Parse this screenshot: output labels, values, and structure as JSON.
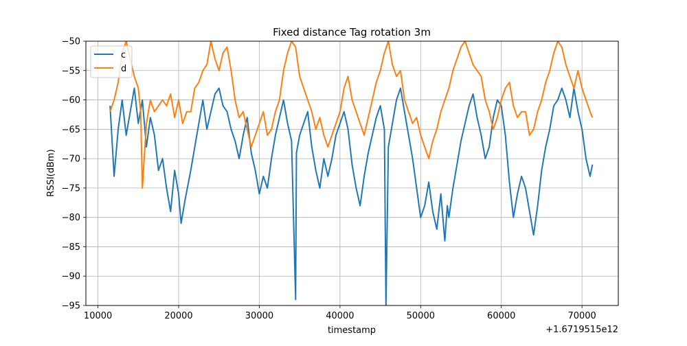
{
  "chart_data": {
    "type": "line",
    "title": "Fixed distance Tag rotation 3m",
    "xlabel": "timestamp",
    "ylabel": "RSSI(dBm)",
    "x_offset_label": "+1.6719515e12",
    "xlim": [
      8500,
      74500
    ],
    "ylim": [
      -95,
      -50
    ],
    "x_ticks": [
      10000,
      20000,
      30000,
      40000,
      50000,
      60000,
      70000
    ],
    "y_ticks": [
      -95,
      -90,
      -85,
      -80,
      -75,
      -70,
      -65,
      -60,
      -55,
      -50
    ],
    "grid": true,
    "legend_position": "top-left",
    "series": [
      {
        "name": "c",
        "color": "#1f77b4",
        "x": [
          11500,
          12000,
          12500,
          13000,
          13500,
          14000,
          14500,
          15000,
          15500,
          16000,
          16500,
          17000,
          17500,
          18000,
          18500,
          19000,
          19500,
          20000,
          20300,
          20800,
          21500,
          22000,
          22500,
          23000,
          23500,
          24000,
          24500,
          25000,
          25500,
          26000,
          26500,
          27000,
          27500,
          28000,
          28500,
          29000,
          29500,
          30000,
          30500,
          31000,
          31500,
          32000,
          32500,
          33000,
          33500,
          34000,
          34500,
          34600,
          35000,
          35500,
          36000,
          36500,
          37000,
          37500,
          38000,
          38500,
          39000,
          39500,
          40000,
          40500,
          41000,
          41500,
          42000,
          42500,
          43000,
          43500,
          44000,
          44500,
          45000,
          45500,
          45700,
          46000,
          46500,
          47000,
          47500,
          48000,
          48500,
          49000,
          49500,
          50000,
          50500,
          51000,
          51500,
          52000,
          52500,
          53000,
          53300,
          53500,
          54000,
          54500,
          55000,
          55500,
          56000,
          56500,
          57000,
          57500,
          58000,
          58500,
          59000,
          59500,
          60000,
          60500,
          61000,
          61500,
          62000,
          62500,
          63000,
          63500,
          64000,
          64500,
          65000,
          65500,
          66000,
          66500,
          67000,
          67500,
          68000,
          68500,
          69000,
          69500,
          70000,
          70500,
          71000,
          71300
        ],
        "y": [
          -61,
          -73,
          -65,
          -60,
          -66,
          -62,
          -58,
          -64,
          -60,
          -68,
          -63,
          -66,
          -72,
          -70,
          -75,
          -79,
          -72,
          -76,
          -81,
          -77,
          -72,
          -68,
          -64,
          -60,
          -65,
          -62,
          -59,
          -58,
          -61,
          -62,
          -65,
          -67,
          -70,
          -66,
          -63,
          -69,
          -72,
          -76,
          -73,
          -75,
          -70,
          -66,
          -63,
          -60,
          -64,
          -67,
          -94,
          -69,
          -66,
          -64,
          -62,
          -68,
          -72,
          -75,
          -70,
          -73,
          -70,
          -66,
          -64,
          -62,
          -65,
          -71,
          -75,
          -78,
          -73,
          -69,
          -66,
          -63,
          -61,
          -65,
          -95,
          -68,
          -64,
          -60,
          -58,
          -62,
          -66,
          -70,
          -75,
          -80,
          -78,
          -74,
          -79,
          -82,
          -76,
          -84,
          -78,
          -80,
          -75,
          -71,
          -67,
          -64,
          -61,
          -59,
          -63,
          -66,
          -70,
          -68,
          -63,
          -60,
          -61,
          -66,
          -74,
          -80,
          -76,
          -73,
          -75,
          -79,
          -83,
          -78,
          -72,
          -68,
          -65,
          -61,
          -60,
          -58,
          -60,
          -63,
          -58,
          -62,
          -65,
          -70,
          -73,
          -71
        ]
      },
      {
        "name": "d",
        "color": "#ff7f0e",
        "x": [
          11500,
          12000,
          12500,
          13000,
          13500,
          14000,
          14500,
          15000,
          15300,
          15500,
          16000,
          16500,
          17000,
          17500,
          18000,
          18500,
          19000,
          19500,
          20000,
          20500,
          21000,
          21500,
          22000,
          22500,
          23000,
          23500,
          24000,
          24500,
          25000,
          25500,
          26000,
          26500,
          27000,
          27500,
          28000,
          28500,
          29000,
          29500,
          30000,
          30500,
          31000,
          31500,
          32000,
          32500,
          33000,
          33500,
          34000,
          34500,
          35000,
          35500,
          36000,
          36500,
          37000,
          37500,
          38000,
          38500,
          39000,
          39500,
          40000,
          40500,
          41000,
          41500,
          42000,
          42500,
          43000,
          43500,
          44000,
          44500,
          45000,
          45500,
          46000,
          46500,
          47000,
          47500,
          48000,
          48500,
          49000,
          49500,
          50000,
          50500,
          51000,
          51500,
          52000,
          52500,
          53000,
          53500,
          54000,
          54500,
          55000,
          55500,
          56000,
          56500,
          57000,
          57500,
          58000,
          58500,
          59000,
          59500,
          60000,
          60500,
          61000,
          61500,
          62000,
          62500,
          63000,
          63500,
          64000,
          64500,
          65000,
          65500,
          66000,
          66500,
          67000,
          67500,
          68000,
          68500,
          69000,
          69500,
          70000,
          70500,
          71000,
          71300
        ],
        "y": [
          -62,
          -60,
          -57,
          -52,
          -50,
          -53,
          -56,
          -58,
          -62,
          -75,
          -64,
          -60,
          -62,
          -61,
          -60,
          -61,
          -59,
          -63,
          -60,
          -64,
          -62,
          -62,
          -58,
          -57,
          -55,
          -54,
          -50,
          -53,
          -55,
          -52,
          -51,
          -55,
          -60,
          -63,
          -62,
          -65,
          -68,
          -66,
          -64,
          -62,
          -66,
          -65,
          -62,
          -60,
          -55,
          -52,
          -50,
          -51,
          -56,
          -58,
          -60,
          -62,
          -65,
          -63,
          -66,
          -68,
          -66,
          -64,
          -62,
          -58,
          -56,
          -60,
          -62,
          -64,
          -66,
          -63,
          -60,
          -57,
          -55,
          -52,
          -50,
          -54,
          -56,
          -55,
          -60,
          -62,
          -64,
          -63,
          -66,
          -68,
          -70,
          -67,
          -65,
          -62,
          -60,
          -58,
          -55,
          -53,
          -51,
          -50,
          -52,
          -54,
          -55,
          -56,
          -60,
          -62,
          -65,
          -63,
          -60,
          -58,
          -57,
          -61,
          -63,
          -62,
          -62,
          -66,
          -65,
          -62,
          -60,
          -57,
          -55,
          -52,
          -50,
          -51,
          -54,
          -56,
          -58,
          -55,
          -58,
          -60,
          -62,
          -63
        ]
      }
    ]
  }
}
